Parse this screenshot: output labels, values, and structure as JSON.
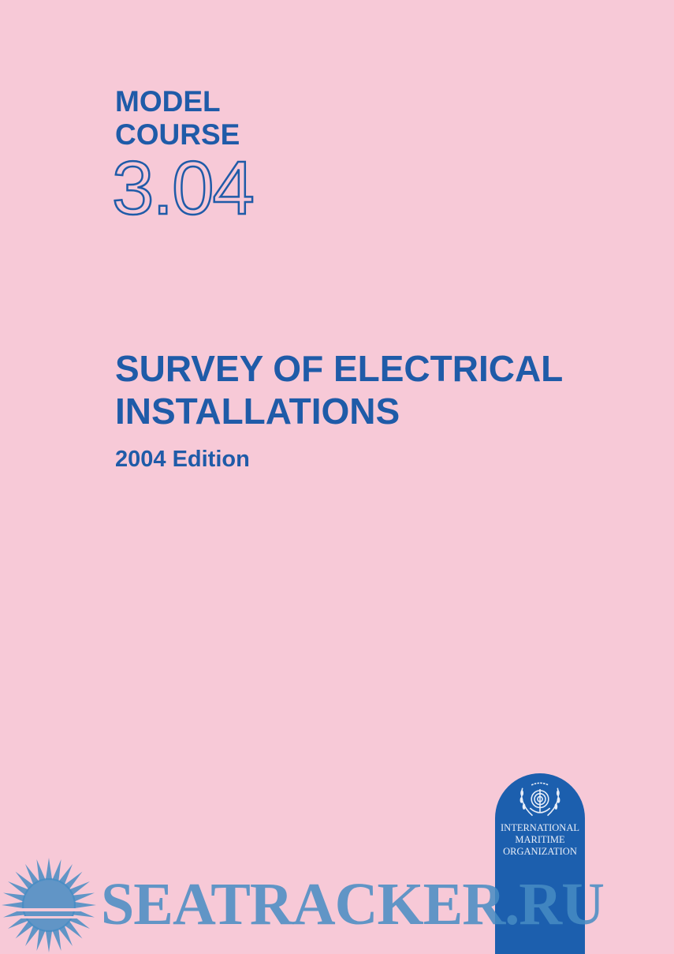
{
  "cover": {
    "series_line1": "MODEL",
    "series_line2": "COURSE",
    "course_number": "3.04",
    "title_line1": "SURVEY OF ELECTRICAL",
    "title_line2": "INSTALLATIONS",
    "edition": "2004 Edition"
  },
  "publisher": {
    "line1": "INTERNATIONAL",
    "line2": "MARITIME",
    "line3": "ORGANIZATION",
    "logo": "imo-emblem-icon"
  },
  "watermark": {
    "text": "SEATRACKER.RU",
    "icon": "sun-icon"
  },
  "colors": {
    "background": "#f7c9d7",
    "text_blue": "#1f5ba8",
    "badge_blue": "#1c5fae",
    "watermark": "#468cc3"
  }
}
